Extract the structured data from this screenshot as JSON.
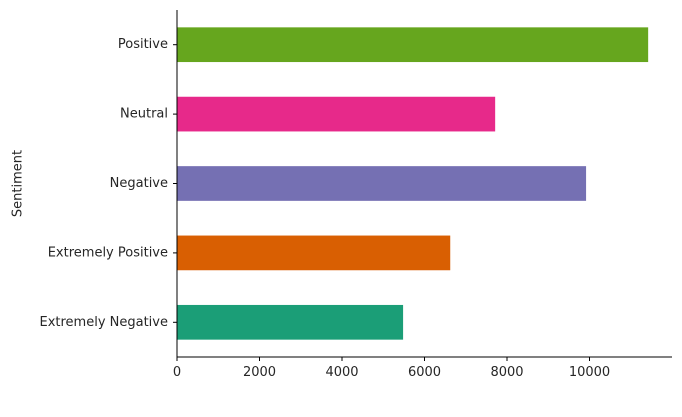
{
  "chart_data": {
    "type": "bar",
    "orientation": "horizontal",
    "title": "",
    "xlabel": "",
    "ylabel": "Sentiment",
    "categories": [
      "Extremely Negative",
      "Extremely Positive",
      "Negative",
      "Neutral",
      "Positive"
    ],
    "values": [
      5481,
      6624,
      9917,
      7713,
      11422
    ],
    "colors": [
      "#1b9e77",
      "#d95f02",
      "#7570b3",
      "#e7298a",
      "#66a61e"
    ],
    "xlim": [
      0,
      12000
    ],
    "xticks": [
      0,
      2000,
      4000,
      6000,
      8000,
      10000
    ],
    "xtick_labels": [
      "0",
      "2000",
      "4000",
      "6000",
      "8000",
      "10000"
    ],
    "grid": false,
    "legend": "none",
    "spines": [
      "left",
      "bottom"
    ]
  }
}
